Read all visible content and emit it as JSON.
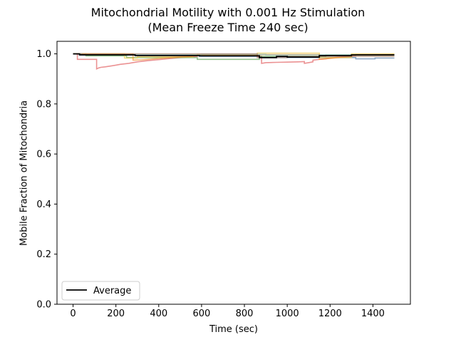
{
  "chart_data": {
    "type": "line",
    "title": "Mitochondrial Motility with 0.001 Hz Stimulation",
    "subtitle": "(Mean Freeze Time 240 sec)",
    "xlabel": "Time (sec)",
    "ylabel": "Mobile Fraction of Mitochondria",
    "xlim": [
      -75,
      1575
    ],
    "ylim": [
      0.0,
      1.05
    ],
    "xticks": [
      0,
      200,
      400,
      600,
      800,
      1000,
      1200,
      1400
    ],
    "yticks": [
      0.0,
      0.2,
      0.4,
      0.6,
      0.8,
      1.0
    ],
    "xtick_labels": [
      "0",
      "200",
      "400",
      "600",
      "800",
      "1000",
      "1200",
      "1400"
    ],
    "ytick_labels": [
      "0.0",
      "0.2",
      "0.4",
      "0.6",
      "0.8",
      "1.0"
    ],
    "grid": false,
    "legend": {
      "position": "lower-left",
      "entries": [
        "Average"
      ]
    },
    "series": [
      {
        "color": "#4e79a7",
        "x": [
          0,
          30,
          30,
          590,
          590,
          880,
          880,
          1320,
          1320,
          1410,
          1410,
          1500
        ],
        "y": [
          1.0,
          1.0,
          0.995,
          0.995,
          0.99,
          0.99,
          0.985,
          0.985,
          0.98,
          0.98,
          0.983,
          0.983
        ]
      },
      {
        "color": "#e15759",
        "x": [
          0,
          20,
          20,
          110,
          110,
          120,
          130,
          150,
          180,
          200,
          220,
          260,
          300,
          350,
          400,
          450,
          500,
          560,
          580,
          580,
          860,
          860,
          880,
          880,
          900,
          950,
          1000,
          1050,
          1080,
          1080,
          1100,
          1120,
          1120,
          1150,
          1180,
          1200,
          1240,
          1300,
          1320,
          1320,
          1500
        ],
        "y": [
          1.0,
          1.0,
          0.978,
          0.978,
          0.94,
          0.944,
          0.946,
          0.948,
          0.952,
          0.955,
          0.958,
          0.962,
          0.968,
          0.973,
          0.977,
          0.981,
          0.985,
          0.988,
          0.99,
          0.995,
          0.995,
          0.99,
          0.99,
          0.962,
          0.965,
          0.966,
          0.967,
          0.968,
          0.969,
          0.962,
          0.965,
          0.968,
          0.975,
          0.978,
          0.98,
          0.983,
          0.987,
          0.99,
          0.993,
          0.997,
          0.997
        ]
      },
      {
        "color": "#59a14f",
        "x": [
          0,
          60,
          60,
          250,
          250,
          580,
          580,
          870,
          870,
          1180,
          1180,
          1500
        ],
        "y": [
          1.0,
          1.0,
          0.992,
          0.992,
          0.985,
          0.985,
          0.978,
          0.978,
          0.99,
          0.99,
          0.995,
          0.995
        ]
      },
      {
        "color": "#edc948",
        "x": [
          0,
          240,
          240,
          300,
          300,
          560,
          560,
          860,
          860,
          1150,
          1150,
          1300,
          1300,
          1500
        ],
        "y": [
          1.0,
          1.0,
          0.983,
          0.983,
          0.988,
          0.988,
          0.995,
          0.995,
          1.003,
          1.003,
          0.985,
          0.985,
          1.0,
          1.0
        ]
      },
      {
        "color": "#f28e2b",
        "x": [
          0,
          280,
          280,
          320,
          350,
          400,
          450,
          500,
          550,
          580,
          580,
          1150,
          1150,
          1200,
          1250,
          1300,
          1300,
          1500
        ],
        "y": [
          1.0,
          1.0,
          0.975,
          0.976,
          0.978,
          0.982,
          0.985,
          0.988,
          0.99,
          0.993,
          0.997,
          0.997,
          0.978,
          0.982,
          0.986,
          0.99,
          0.995,
          0.995
        ]
      },
      {
        "color": "#76b7b2",
        "x": [
          0,
          40,
          40,
          600,
          600,
          900,
          900,
          1500
        ],
        "y": [
          1.0,
          1.0,
          0.996,
          0.996,
          0.998,
          0.998,
          0.996,
          0.996
        ]
      },
      {
        "color": "#9c755f",
        "x": [
          0,
          860,
          860,
          1000,
          1000,
          1500
        ],
        "y": [
          1.0,
          1.0,
          0.985,
          0.985,
          0.99,
          0.99
        ]
      },
      {
        "name": "Average",
        "color": "#000000",
        "x": [
          0,
          30,
          30,
          290,
          290,
          590,
          590,
          870,
          870,
          950,
          950,
          1000,
          1000,
          1150,
          1150,
          1300,
          1300,
          1500
        ],
        "y": [
          1.0,
          1.0,
          0.996,
          0.996,
          0.993,
          0.993,
          0.992,
          0.992,
          0.985,
          0.985,
          0.99,
          0.99,
          0.987,
          0.987,
          0.993,
          0.993,
          0.996,
          0.996
        ]
      }
    ]
  }
}
